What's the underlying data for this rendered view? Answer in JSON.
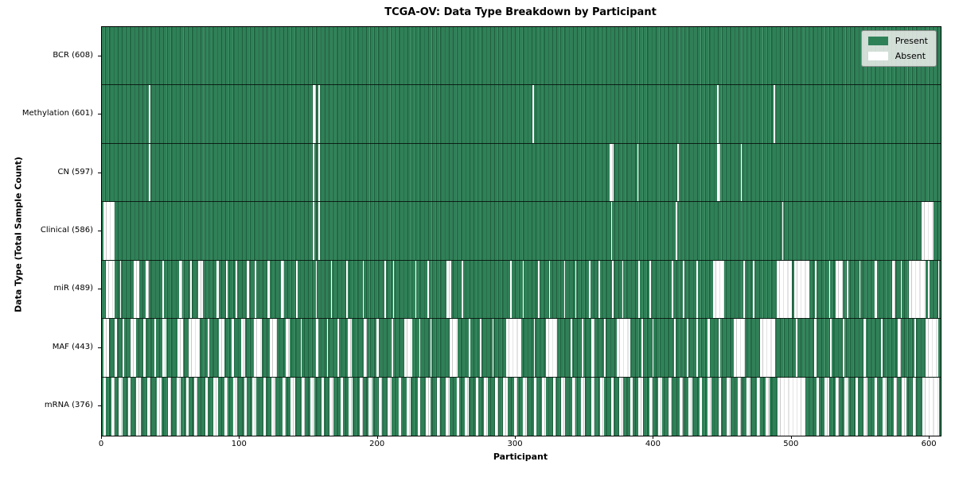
{
  "chart_data": {
    "type": "heatmap",
    "title": "TCGA-OV: Data Type Breakdown by Participant",
    "xlabel": "Participant",
    "ylabel": "Data Type (Total Sample Count)",
    "x_range": [
      0,
      608
    ],
    "x_ticks": [
      0,
      100,
      200,
      300,
      400,
      500,
      600
    ],
    "grid": false,
    "legend_position": "upper right",
    "legend": {
      "present_label": "Present",
      "absent_label": "Absent"
    },
    "colors": {
      "present": "#2e8157",
      "present_edge_dark": "#1f5f3e",
      "present_edge_light": "#4f9672",
      "absent": "#ffffff",
      "absent_edge": "#c9c9c9",
      "legend_background": "#e9ece9",
      "legend_border": "#8f8f8f"
    },
    "rows": [
      {
        "data_type": "BCR",
        "label": "BCR (608)",
        "present_count": 608,
        "absent_count": 0,
        "absent_ranges": []
      },
      {
        "data_type": "Methylation",
        "label": "Methylation (601)",
        "present_count": 601,
        "absent_count": 7,
        "absent_ranges": [
          [
            34,
            34
          ],
          [
            153,
            154
          ],
          [
            157,
            157
          ],
          [
            312,
            312
          ],
          [
            446,
            446
          ],
          [
            487,
            487
          ]
        ]
      },
      {
        "data_type": "CN",
        "label": "CN (597)",
        "present_count": 597,
        "absent_count": 11,
        "absent_ranges": [
          [
            34,
            34
          ],
          [
            153,
            153
          ],
          [
            157,
            157
          ],
          [
            368,
            370
          ],
          [
            388,
            388
          ],
          [
            417,
            417
          ],
          [
            446,
            447
          ],
          [
            463,
            463
          ]
        ]
      },
      {
        "data_type": "Clinical",
        "label": "Clinical (586)",
        "present_count": 586,
        "absent_count": 22,
        "absent_ranges": [
          [
            1,
            8
          ],
          [
            153,
            153
          ],
          [
            157,
            157
          ],
          [
            369,
            369
          ],
          [
            416,
            416
          ],
          [
            493,
            493
          ],
          [
            594,
            602
          ]
        ]
      },
      {
        "data_type": "miR",
        "label": "miR (489)",
        "present_count": 489,
        "absent_count": 119,
        "absent_ranges": [
          [
            3,
            8
          ],
          [
            13,
            13
          ],
          [
            23,
            26
          ],
          [
            32,
            33
          ],
          [
            44,
            44
          ],
          [
            56,
            57
          ],
          [
            64,
            64
          ],
          [
            70,
            72
          ],
          [
            83,
            84
          ],
          [
            90,
            90
          ],
          [
            97,
            97
          ],
          [
            105,
            106
          ],
          [
            111,
            111
          ],
          [
            120,
            121
          ],
          [
            130,
            131
          ],
          [
            141,
            141
          ],
          [
            155,
            155
          ],
          [
            166,
            166
          ],
          [
            177,
            177
          ],
          [
            189,
            189
          ],
          [
            205,
            205
          ],
          [
            211,
            211
          ],
          [
            227,
            227
          ],
          [
            236,
            236
          ],
          [
            250,
            252
          ],
          [
            261,
            261
          ],
          [
            296,
            296
          ],
          [
            305,
            305
          ],
          [
            316,
            316
          ],
          [
            324,
            324
          ],
          [
            335,
            335
          ],
          [
            343,
            343
          ],
          [
            353,
            353
          ],
          [
            360,
            360
          ],
          [
            370,
            370
          ],
          [
            377,
            377
          ],
          [
            389,
            389
          ],
          [
            397,
            397
          ],
          [
            413,
            413
          ],
          [
            421,
            421
          ],
          [
            431,
            431
          ],
          [
            443,
            450
          ],
          [
            465,
            465
          ],
          [
            472,
            472
          ],
          [
            489,
            499
          ],
          [
            502,
            512
          ],
          [
            517,
            517
          ],
          [
            527,
            527
          ],
          [
            532,
            536
          ],
          [
            540,
            540
          ],
          [
            549,
            549
          ],
          [
            560,
            561
          ],
          [
            573,
            574
          ],
          [
            579,
            579
          ],
          [
            585,
            596
          ],
          [
            599,
            599
          ],
          [
            606,
            606
          ]
        ]
      },
      {
        "data_type": "MAF",
        "label": "MAF (443)",
        "present_count": 443,
        "absent_count": 165,
        "absent_ranges": [
          [
            1,
            4
          ],
          [
            9,
            10
          ],
          [
            15,
            15
          ],
          [
            21,
            24
          ],
          [
            30,
            31
          ],
          [
            38,
            38
          ],
          [
            44,
            46
          ],
          [
            55,
            58
          ],
          [
            63,
            70
          ],
          [
            77,
            77
          ],
          [
            85,
            88
          ],
          [
            94,
            95
          ],
          [
            101,
            103
          ],
          [
            110,
            115
          ],
          [
            122,
            126
          ],
          [
            133,
            135
          ],
          [
            144,
            144
          ],
          [
            155,
            156
          ],
          [
            163,
            163
          ],
          [
            171,
            171
          ],
          [
            178,
            180
          ],
          [
            190,
            191
          ],
          [
            199,
            200
          ],
          [
            210,
            210
          ],
          [
            219,
            224
          ],
          [
            230,
            230
          ],
          [
            238,
            238
          ],
          [
            252,
            257
          ],
          [
            266,
            266
          ],
          [
            274,
            274
          ],
          [
            283,
            283
          ],
          [
            293,
            303
          ],
          [
            313,
            313
          ],
          [
            322,
            329
          ],
          [
            340,
            340
          ],
          [
            348,
            348
          ],
          [
            355,
            356
          ],
          [
            364,
            364
          ],
          [
            373,
            382
          ],
          [
            391,
            391
          ],
          [
            399,
            399
          ],
          [
            415,
            415
          ],
          [
            424,
            424
          ],
          [
            431,
            431
          ],
          [
            439,
            440
          ],
          [
            447,
            447
          ],
          [
            458,
            465
          ],
          [
            477,
            487
          ],
          [
            503,
            503
          ],
          [
            516,
            517
          ],
          [
            528,
            528
          ],
          [
            537,
            537
          ],
          [
            552,
            553
          ],
          [
            565,
            565
          ],
          [
            577,
            578
          ],
          [
            589,
            589
          ],
          [
            597,
            605
          ]
        ]
      },
      {
        "data_type": "mRNA",
        "label": "mRNA (376)",
        "present_count": 376,
        "absent_count": 232,
        "absent_ranges": [
          [
            1,
            2
          ],
          [
            7,
            8
          ],
          [
            12,
            14
          ],
          [
            19,
            20
          ],
          [
            25,
            27
          ],
          [
            33,
            34
          ],
          [
            40,
            42
          ],
          [
            48,
            49
          ],
          [
            54,
            56
          ],
          [
            61,
            62
          ],
          [
            67,
            68
          ],
          [
            75,
            76
          ],
          [
            81,
            83
          ],
          [
            89,
            90
          ],
          [
            95,
            97
          ],
          [
            103,
            104
          ],
          [
            109,
            111
          ],
          [
            117,
            118
          ],
          [
            123,
            125
          ],
          [
            131,
            132
          ],
          [
            137,
            139
          ],
          [
            145,
            146
          ],
          [
            151,
            153
          ],
          [
            159,
            160
          ],
          [
            165,
            167
          ],
          [
            173,
            174
          ],
          [
            179,
            181
          ],
          [
            187,
            188
          ],
          [
            193,
            195
          ],
          [
            201,
            202
          ],
          [
            207,
            209
          ],
          [
            215,
            216
          ],
          [
            221,
            223
          ],
          [
            229,
            230
          ],
          [
            235,
            237
          ],
          [
            243,
            244
          ],
          [
            249,
            251
          ],
          [
            257,
            258
          ],
          [
            263,
            265
          ],
          [
            271,
            272
          ],
          [
            277,
            279
          ],
          [
            285,
            286
          ],
          [
            291,
            293
          ],
          [
            299,
            300
          ],
          [
            305,
            307
          ],
          [
            313,
            314
          ],
          [
            319,
            321
          ],
          [
            327,
            328
          ],
          [
            333,
            335
          ],
          [
            341,
            342
          ],
          [
            347,
            349
          ],
          [
            355,
            356
          ],
          [
            361,
            363
          ],
          [
            369,
            370
          ],
          [
            375,
            377
          ],
          [
            383,
            384
          ],
          [
            389,
            391
          ],
          [
            397,
            398
          ],
          [
            403,
            405
          ],
          [
            411,
            412
          ],
          [
            419,
            420
          ],
          [
            425,
            427
          ],
          [
            433,
            434
          ],
          [
            439,
            441
          ],
          [
            447,
            448
          ],
          [
            453,
            455
          ],
          [
            461,
            462
          ],
          [
            467,
            469
          ],
          [
            475,
            476
          ],
          [
            481,
            483
          ],
          [
            490,
            509
          ],
          [
            518,
            519
          ],
          [
            524,
            526
          ],
          [
            532,
            533
          ],
          [
            538,
            540
          ],
          [
            546,
            547
          ],
          [
            552,
            554
          ],
          [
            560,
            561
          ],
          [
            566,
            568
          ],
          [
            574,
            575
          ],
          [
            580,
            582
          ],
          [
            588,
            589
          ],
          [
            595,
            606
          ]
        ]
      }
    ]
  }
}
